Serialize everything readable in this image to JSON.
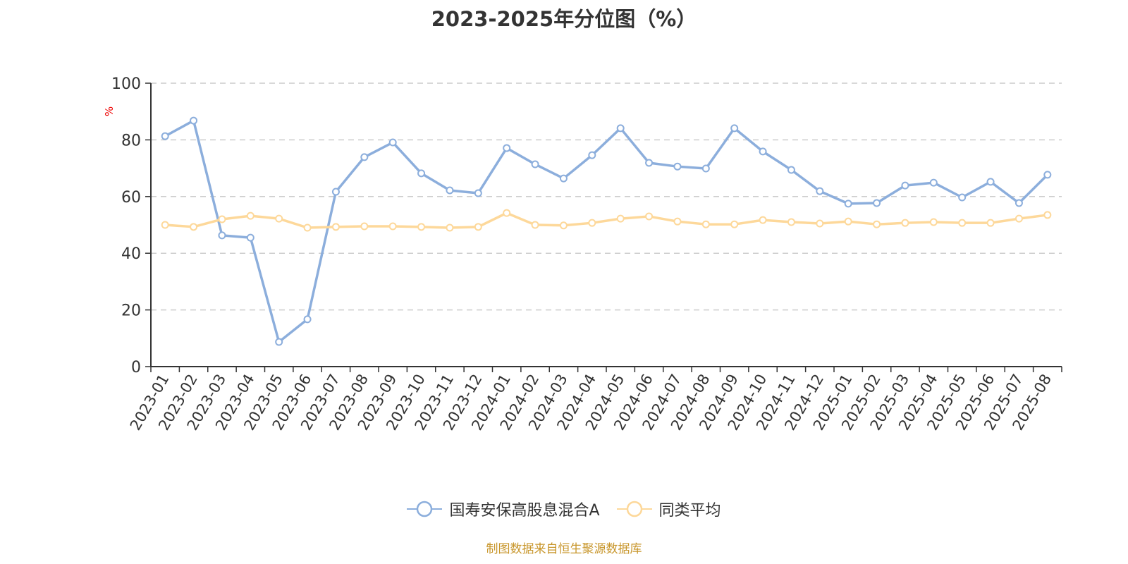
{
  "chart_data": {
    "type": "line",
    "title": "2023-2025年分位图（%）",
    "ylabel": "%",
    "ylim": [
      0,
      100
    ],
    "yticks": [
      0,
      20,
      40,
      60,
      80,
      100
    ],
    "grid": true,
    "legend_position": "bottom",
    "categories": [
      "2023-01",
      "2023-02",
      "2023-03",
      "2023-04",
      "2023-05",
      "2023-06",
      "2023-07",
      "2023-08",
      "2023-09",
      "2023-10",
      "2023-11",
      "2023-12",
      "2024-01",
      "2024-02",
      "2024-03",
      "2024-04",
      "2024-05",
      "2024-06",
      "2024-07",
      "2024-08",
      "2024-09",
      "2024-10",
      "2024-11",
      "2024-12",
      "2025-01",
      "2025-02",
      "2025-03",
      "2025-04",
      "2025-05",
      "2025-06",
      "2025-07",
      "2025-08"
    ],
    "series": [
      {
        "name": "国寿安保高股息混合A",
        "color": "#8caedc",
        "values": [
          81.3,
          86.8,
          46.3,
          45.5,
          8.7,
          16.7,
          61.7,
          73.9,
          79.1,
          68.2,
          62.2,
          61.2,
          77.1,
          71.4,
          66.4,
          74.6,
          84.1,
          71.9,
          70.6,
          69.9,
          84.1,
          75.9,
          69.4,
          61.9,
          57.5,
          57.7,
          63.9,
          64.9,
          59.7,
          65.2,
          57.7,
          67.7
        ]
      },
      {
        "name": "同类平均",
        "color": "#fdd89a",
        "values": [
          50.0,
          49.3,
          52.0,
          53.2,
          52.2,
          49.0,
          49.3,
          49.5,
          49.5,
          49.3,
          49.0,
          49.3,
          54.2,
          50.0,
          49.8,
          50.7,
          52.2,
          53.0,
          51.2,
          50.2,
          50.2,
          51.7,
          51.0,
          50.5,
          51.2,
          50.2,
          50.7,
          51.0,
          50.7,
          50.7,
          52.2,
          53.5
        ]
      }
    ]
  },
  "source": "制图数据来自恒生聚源数据库"
}
